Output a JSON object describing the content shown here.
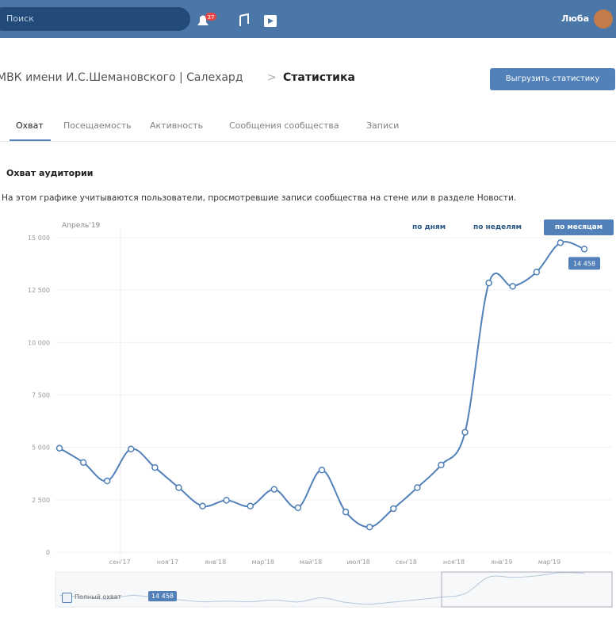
{
  "header": {
    "search": "Поиск",
    "notifications": "37",
    "user": "Люба"
  },
  "breadcrumb": {
    "group": "МВК имени И.С.Шемановского | Салехард",
    "separator": ">",
    "page": "Статистика"
  },
  "export_button": "Выгрузить статистику",
  "tabs": [
    "Охват",
    "Посещаемость",
    "Активность",
    "Сообщения сообщества",
    "Записи"
  ],
  "section": {
    "title": "Охват аудитории",
    "description": "На этом графике учитываются пользователи, просмотревшие записи сообщества на стене или в разделе Новости."
  },
  "period": {
    "current": "Апрель'19",
    "buttons": [
      "по дням",
      "по неделям",
      "по месяцам"
    ]
  },
  "chart_data": {
    "type": "line",
    "categories": [
      null,
      null,
      null,
      "сен'17",
      null,
      "ноя'17",
      null,
      "янв'18",
      null,
      "мар'18",
      null,
      "май'18",
      null,
      "июл'18",
      null,
      "сен'18",
      null,
      "ноя'18",
      null,
      "янв'19",
      null,
      "мар'19",
      null
    ],
    "series": [
      {
        "name": "Полный охват",
        "color": "#5181b8",
        "values": [
          4960,
          4280,
          3400,
          4920,
          4040,
          3080,
          2200,
          2480,
          2200,
          3000,
          2120,
          3920,
          1920,
          1200,
          2080,
          3080,
          4160,
          5720,
          12840,
          12680,
          13360,
          14760,
          14458
        ],
        "value_labels": [
          null,
          null,
          null,
          null,
          null,
          null,
          null,
          null,
          null,
          null,
          null,
          null,
          null,
          null,
          null,
          null,
          null,
          null,
          null,
          null,
          null,
          null,
          "14 458"
        ]
      }
    ],
    "ylim": [
      0,
      15000
    ],
    "yticks": [
      0,
      {
        "value": 2500,
        "label": "2 500"
      },
      {
        "value": 5000,
        "label": "5 000"
      },
      {
        "value": 7500,
        "label": "7 500"
      },
      {
        "value": 10000,
        "label": "10 000"
      },
      {
        "value": 12500,
        "label": "12 500"
      },
      {
        "value": 15000,
        "label": "15 000"
      }
    ],
    "grid": true
  }
}
